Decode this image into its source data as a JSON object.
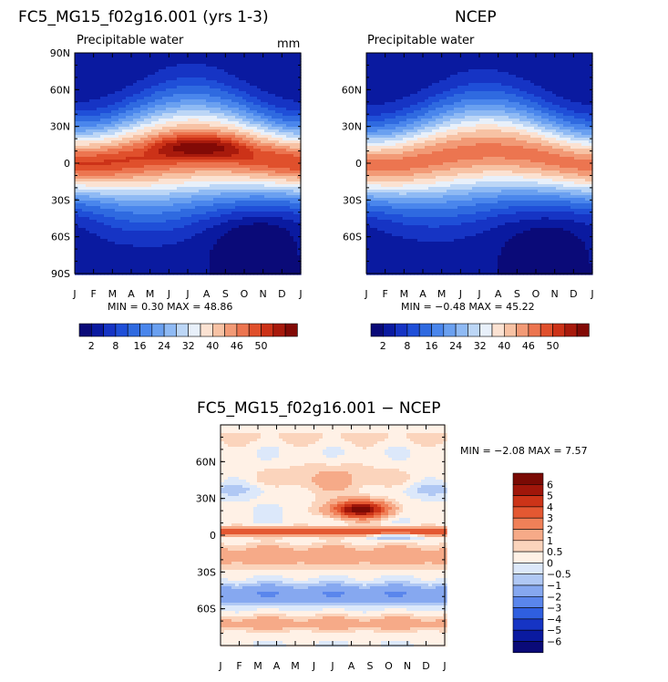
{
  "chart_data": [
    {
      "type": "heatmap",
      "title": "FC5_MG15_f02g16.001 (yrs 1-3)",
      "subtitle": "Precipitable water",
      "units": "mm",
      "x_tick_labels": [
        "J",
        "F",
        "M",
        "A",
        "M",
        "J",
        "J",
        "A",
        "S",
        "O",
        "N",
        "D",
        "J"
      ],
      "y_tick_labels": [
        "90N",
        "60N",
        "30N",
        "0",
        "30S",
        "60S",
        "90S"
      ],
      "ylim": [
        -90,
        90
      ],
      "stats": "MIN =    0.30 MAX =   48.86",
      "min": 0.3,
      "max": 48.86,
      "colorbar_labels": [
        "2",
        "8",
        "16",
        "24",
        "32",
        "40",
        "46",
        "50"
      ]
    },
    {
      "type": "heatmap",
      "title": "NCEP",
      "subtitle": "Precipitable water",
      "x_tick_labels": [
        "J",
        "F",
        "M",
        "A",
        "M",
        "J",
        "J",
        "A",
        "S",
        "O",
        "N",
        "D",
        "J"
      ],
      "y_tick_labels": [
        "60N",
        "30N",
        "0",
        "30S",
        "60S"
      ],
      "ylim": [
        -90,
        90
      ],
      "stats": "MIN =   −0.48 MAX =   45.22",
      "min": -0.48,
      "max": 45.22,
      "colorbar_labels": [
        "2",
        "8",
        "16",
        "24",
        "32",
        "40",
        "46",
        "50"
      ]
    },
    {
      "type": "heatmap",
      "title": "FC5_MG15_f02g16.001 − NCEP",
      "x_tick_labels": [
        "J",
        "F",
        "M",
        "A",
        "M",
        "J",
        "J",
        "A",
        "S",
        "O",
        "N",
        "D",
        "J"
      ],
      "y_tick_labels": [
        "60N",
        "30N",
        "0",
        "30S",
        "60S"
      ],
      "ylim": [
        -90,
        90
      ],
      "stats": "MIN =   −2.08 MAX =    7.57",
      "min": -2.08,
      "max": 7.57,
      "colorbar_labels": [
        "6",
        "5",
        "4",
        "3",
        "2",
        "1",
        "0.5",
        "0",
        "−0.5",
        "−1",
        "−2",
        "−3",
        "−4",
        "−5",
        "−6"
      ]
    }
  ],
  "colors": {
    "abs_scale": [
      "#0a0a78",
      "#0a1aa0",
      "#1634c4",
      "#1f4fd8",
      "#2f6ae0",
      "#4a86ec",
      "#6aa0f0",
      "#8fbaf4",
      "#bcd6f6",
      "#e8f0fa",
      "#fbe2d2",
      "#f7c2a4",
      "#f29a76",
      "#ec7550",
      "#e0502c",
      "#cc3218",
      "#a81a0c",
      "#820a06"
    ],
    "diff_scale": [
      "#0a0a78",
      "#0a1aa0",
      "#1634c4",
      "#2f5fe0",
      "#5a86ec",
      "#86a8f0",
      "#b0c8f4",
      "#dce8fa",
      "#fff1e6",
      "#fbd4bc",
      "#f6aa88",
      "#f08058",
      "#e45832",
      "#cc3418",
      "#a0160a",
      "#7a0a04"
    ]
  }
}
